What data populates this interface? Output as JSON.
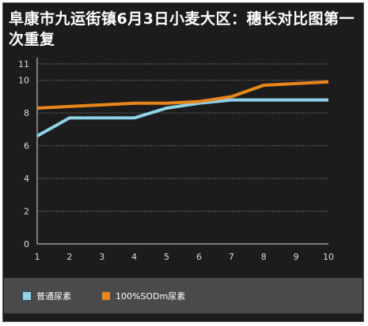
{
  "title": "阜康市九运街镇6月3日小麦大区：穗长对比图第一次重复",
  "chart_data": {
    "type": "line",
    "x": [
      1,
      2,
      3,
      4,
      5,
      6,
      7,
      8,
      9,
      10
    ],
    "xticks": [
      "1",
      "2",
      "3",
      "4",
      "5",
      "6",
      "7",
      "8",
      "9",
      "10"
    ],
    "yticks": [
      "0",
      "2",
      "4",
      "6",
      "8",
      "10",
      "11"
    ],
    "ylim": [
      0,
      11
    ],
    "xlim": [
      1,
      10
    ],
    "grid": true,
    "legend_position": "bottom",
    "series": [
      {
        "name": "普通尿素",
        "color": "#8ed2ea",
        "values": [
          6.6,
          7.7,
          7.7,
          7.7,
          8.3,
          8.6,
          8.8,
          8.8,
          8.8,
          8.8
        ]
      },
      {
        "name": "100%SODm尿素",
        "color": "#e8861c",
        "values": [
          8.3,
          8.4,
          8.5,
          8.6,
          8.6,
          8.7,
          9.0,
          9.7,
          9.8,
          9.9
        ]
      }
    ]
  },
  "colors": {
    "background": "#1c1c1c",
    "legend_bg": "#4a4a4a",
    "grid": "#9a9a9a",
    "axis": "#dddddd"
  }
}
